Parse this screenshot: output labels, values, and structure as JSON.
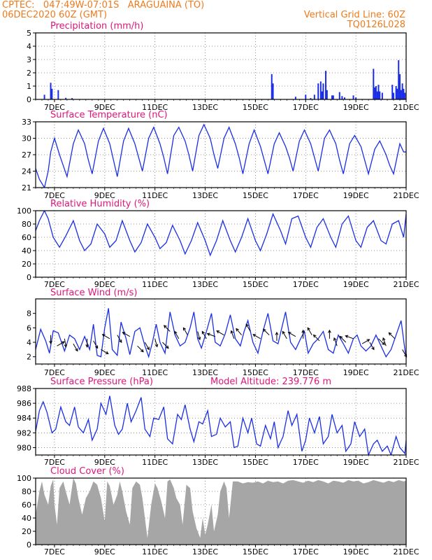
{
  "header": {
    "station_line": "CPTEC:   047:49W-07:01S   ARAGUAINA (TO)",
    "date_line": "06DEC2020 60Z (GMT)",
    "grid_note": "Vertical Grid Line: 60Z",
    "model_code": "TQ0126L028"
  },
  "colors": {
    "header": "#f07a1a",
    "panel_title": "#e0157a",
    "series": "#1a2ee6",
    "cloud": "#a6a6a6",
    "wind_arrow": "#000000"
  },
  "x_axis": {
    "labels": [
      "7DEC",
      "9DEC",
      "11DEC",
      "13DEC",
      "15DEC",
      "17DEC",
      "19DEC",
      "21DEC"
    ],
    "label_days": [
      7,
      9,
      11,
      13,
      15,
      17,
      19,
      21
    ],
    "start_day": 6.25,
    "end_day": 21.0
  },
  "chart_data": [
    {
      "id": "precip",
      "type": "bar",
      "title": "Precipitation  (mm/h)",
      "ylim": [
        0,
        5
      ],
      "yticks": [
        0,
        1,
        2,
        3,
        4,
        5
      ],
      "grid": true,
      "series": [
        {
          "x": [
            6.6,
            6.85,
            6.9,
            7.15,
            7.45,
            7.7,
            15.65,
            15.7,
            16.6,
            17.0,
            17.2,
            17.35,
            17.5,
            17.6,
            17.65,
            17.7,
            17.8,
            17.85,
            18.05,
            18.1,
            18.35,
            18.45,
            18.55,
            18.9,
            19.0,
            19.7,
            19.75,
            19.8,
            19.85,
            19.9,
            19.95,
            20.05,
            20.45,
            20.5,
            20.6,
            20.65,
            20.7,
            20.75,
            20.8,
            20.85,
            20.9,
            20.95
          ],
          "values": [
            0.35,
            1.25,
            0.8,
            0.7,
            0.12,
            0.1,
            1.9,
            1.2,
            0.2,
            0.35,
            0.1,
            0.35,
            1.2,
            1.35,
            0.6,
            1.2,
            2.15,
            0.7,
            0.3,
            0.3,
            0.55,
            0.25,
            0.15,
            0.3,
            0.15,
            2.3,
            0.9,
            1.0,
            0.6,
            1.1,
            0.6,
            0.5,
            1.1,
            0.5,
            1.0,
            0.8,
            2.95,
            1.9,
            0.7,
            1.2,
            0.8,
            0.5
          ]
        }
      ]
    },
    {
      "id": "temp",
      "type": "line",
      "title": "Surface Temperature  (nC)",
      "ylim": [
        21,
        33
      ],
      "yticks": [
        21,
        24,
        27,
        30,
        33
      ],
      "grid": true,
      "x": [
        6.25,
        6.4,
        6.6,
        6.75,
        6.85,
        7.0,
        7.2,
        7.35,
        7.5,
        7.75,
        7.95,
        8.2,
        8.35,
        8.5,
        8.75,
        8.95,
        9.2,
        9.35,
        9.5,
        9.75,
        9.95,
        10.2,
        10.35,
        10.5,
        10.75,
        10.95,
        11.2,
        11.35,
        11.5,
        11.75,
        11.95,
        12.2,
        12.35,
        12.5,
        12.75,
        12.95,
        13.2,
        13.35,
        13.5,
        13.75,
        13.95,
        14.2,
        14.35,
        14.5,
        14.75,
        14.95,
        15.2,
        15.35,
        15.5,
        15.75,
        15.95,
        16.2,
        16.35,
        16.5,
        16.75,
        16.95,
        17.2,
        17.35,
        17.5,
        17.75,
        17.95,
        18.2,
        18.35,
        18.5,
        18.75,
        18.95,
        19.2,
        19.35,
        19.5,
        19.75,
        19.95,
        20.2,
        20.35,
        20.5,
        20.75,
        20.9,
        21.0
      ],
      "values": [
        24.5,
        22.5,
        21.0,
        24.0,
        27.5,
        30.0,
        27.0,
        25.0,
        23.0,
        29.0,
        31.5,
        29.0,
        26.0,
        23.5,
        29.5,
        31.8,
        29.0,
        26.0,
        23.0,
        29.5,
        31.8,
        29.0,
        26.5,
        24.0,
        30.0,
        32.0,
        29.0,
        26.5,
        23.5,
        30.5,
        32.0,
        29.5,
        27.0,
        24.0,
        30.5,
        32.5,
        30.0,
        27.0,
        24.5,
        30.0,
        32.0,
        29.0,
        26.5,
        23.5,
        29.0,
        31.5,
        28.5,
        26.0,
        23.5,
        29.0,
        31.0,
        28.5,
        26.5,
        24.0,
        29.5,
        31.5,
        29.0,
        26.5,
        24.0,
        30.0,
        31.5,
        29.0,
        26.0,
        23.5,
        29.0,
        30.5,
        28.5,
        26.0,
        23.5,
        28.0,
        29.5,
        27.0,
        25.0,
        23.5,
        29.0,
        27.5,
        27.5
      ]
    },
    {
      "id": "rh",
      "type": "line",
      "title": "Relative Humidity  (%)",
      "ylim": [
        0,
        100
      ],
      "yticks": [
        0,
        20,
        40,
        60,
        80,
        100
      ],
      "grid": true,
      "x": [
        6.25,
        6.4,
        6.6,
        6.75,
        6.95,
        7.2,
        7.45,
        7.75,
        8.0,
        8.2,
        8.45,
        8.7,
        9.0,
        9.2,
        9.45,
        9.7,
        10.0,
        10.2,
        10.45,
        10.7,
        11.0,
        11.2,
        11.45,
        11.7,
        12.0,
        12.2,
        12.45,
        12.7,
        13.0,
        13.2,
        13.45,
        13.7,
        14.0,
        14.2,
        14.45,
        14.7,
        15.0,
        15.2,
        15.45,
        15.7,
        16.0,
        16.2,
        16.45,
        16.7,
        17.0,
        17.2,
        17.45,
        17.7,
        18.0,
        18.2,
        18.45,
        18.7,
        19.0,
        19.2,
        19.45,
        19.7,
        20.0,
        20.2,
        20.45,
        20.7,
        20.9,
        21.0
      ],
      "values": [
        70,
        85,
        100,
        88,
        60,
        45,
        62,
        85,
        55,
        40,
        50,
        80,
        65,
        45,
        55,
        85,
        55,
        38,
        52,
        80,
        60,
        43,
        52,
        78,
        55,
        35,
        55,
        82,
        55,
        33,
        55,
        85,
        55,
        38,
        60,
        88,
        55,
        40,
        65,
        95,
        70,
        50,
        88,
        92,
        60,
        45,
        75,
        88,
        60,
        45,
        80,
        92,
        55,
        45,
        75,
        85,
        55,
        50,
        80,
        85,
        60,
        95
      ]
    },
    {
      "id": "wind",
      "type": "line",
      "title": "Surface Wind  (m/s)",
      "ylim": [
        1,
        10
      ],
      "yticks": [
        2,
        4,
        6,
        8
      ],
      "grid": false,
      "x": [
        6.25,
        6.45,
        6.65,
        6.8,
        6.95,
        7.15,
        7.4,
        7.6,
        7.8,
        8.0,
        8.2,
        8.4,
        8.55,
        8.7,
        8.85,
        9.0,
        9.15,
        9.3,
        9.5,
        9.65,
        9.85,
        10.0,
        10.2,
        10.4,
        10.6,
        10.75,
        10.9,
        11.05,
        11.2,
        11.4,
        11.6,
        11.8,
        12.0,
        12.2,
        12.4,
        12.55,
        12.7,
        12.85,
        13.05,
        13.25,
        13.4,
        13.6,
        13.8,
        14.0,
        14.2,
        14.4,
        14.55,
        14.7,
        14.9,
        15.1,
        15.3,
        15.5,
        15.7,
        15.9,
        16.05,
        16.2,
        16.4,
        16.6,
        16.8,
        16.95,
        17.1,
        17.3,
        17.5,
        17.7,
        17.9,
        18.1,
        18.3,
        18.5,
        18.7,
        18.9,
        19.05,
        19.2,
        19.4,
        19.6,
        19.8,
        20.0,
        20.2,
        20.4,
        20.6,
        20.8,
        20.95,
        21.0
      ],
      "values": [
        3.0,
        5.8,
        4.2,
        2.5,
        5.6,
        5.3,
        2.8,
        5.0,
        4.5,
        3.0,
        4.8,
        3.0,
        6.5,
        2.2,
        2.0,
        6.0,
        8.7,
        3.0,
        2.2,
        6.8,
        4.5,
        2.3,
        5.5,
        6.0,
        3.5,
        2.0,
        4.0,
        6.5,
        4.0,
        2.5,
        8.2,
        5.0,
        3.5,
        4.0,
        6.0,
        8.2,
        4.5,
        3.2,
        5.5,
        8.0,
        4.0,
        3.5,
        5.2,
        7.8,
        4.5,
        3.5,
        5.5,
        7.0,
        4.0,
        2.5,
        5.5,
        8.0,
        4.2,
        3.8,
        6.0,
        8.2,
        4.0,
        3.0,
        4.5,
        5.5,
        2.5,
        3.8,
        4.5,
        5.5,
        3.0,
        2.5,
        5.0,
        3.8,
        2.5,
        4.5,
        5.0,
        3.5,
        2.8,
        3.5,
        5.0,
        3.5,
        2.0,
        3.0,
        5.0,
        7.0,
        3.0,
        2.0
      ],
      "arrows": {
        "x": [
          6.85,
          7.1,
          7.4,
          7.75,
          8.3,
          8.55,
          8.85,
          9.2,
          9.5,
          10.0,
          10.3,
          10.6,
          11.0,
          11.3,
          11.6,
          11.95,
          12.3,
          12.7,
          13.05,
          13.4,
          13.75,
          14.15,
          14.45,
          14.8,
          15.2,
          15.55,
          15.85,
          16.25,
          16.6,
          16.9,
          17.25,
          17.55,
          17.95,
          18.25,
          18.6,
          18.9,
          19.25,
          19.55,
          19.9,
          20.2,
          20.55,
          20.85
        ],
        "speed": [
          5.0,
          3.5,
          4.5,
          3.8,
          4.5,
          4.2,
          3.0,
          4.5,
          5.0,
          4.8,
          3.5,
          4.0,
          4.5,
          4.0,
          5.5,
          4.5,
          5.0,
          5.5,
          4.5,
          4.8,
          5.0,
          4.5,
          5.0,
          5.5,
          4.5,
          5.0,
          4.2,
          4.5,
          4.8,
          4.5,
          5.0,
          4.2,
          4.5,
          3.5,
          4.0,
          4.5,
          3.8,
          4.0,
          4.5,
          3.5,
          4.5,
          3.0
        ],
        "direction_deg": [
          90,
          330,
          80,
          60,
          90,
          60,
          30,
          210,
          60,
          210,
          45,
          60,
          75,
          45,
          225,
          240,
          240,
          75,
          240,
          200,
          210,
          250,
          230,
          240,
          210,
          225,
          270,
          240,
          210,
          270,
          240,
          225,
          270,
          250,
          225,
          200,
          330,
          60,
          45,
          250,
          225,
          60
        ]
      }
    },
    {
      "id": "pressure",
      "type": "line",
      "title": "Surface Pressure  (hPa)",
      "annotation": "Model Altitude: 239.776  m",
      "ylim": [
        979.0,
        988.0
      ],
      "yticks": [
        980,
        982,
        984,
        986,
        988
      ],
      "grid": true,
      "x": [
        6.25,
        6.4,
        6.55,
        6.7,
        6.9,
        7.05,
        7.25,
        7.45,
        7.6,
        7.8,
        7.95,
        8.15,
        8.35,
        8.5,
        8.7,
        8.85,
        9.05,
        9.2,
        9.4,
        9.55,
        9.7,
        9.9,
        10.05,
        10.25,
        10.45,
        10.6,
        10.8,
        10.95,
        11.15,
        11.35,
        11.5,
        11.7,
        11.9,
        12.05,
        12.2,
        12.4,
        12.55,
        12.75,
        12.9,
        13.1,
        13.25,
        13.45,
        13.6,
        13.8,
        14.0,
        14.15,
        14.3,
        14.5,
        14.7,
        14.85,
        15.05,
        15.2,
        15.4,
        15.6,
        15.75,
        15.9,
        16.1,
        16.3,
        16.45,
        16.65,
        16.85,
        17.0,
        17.15,
        17.35,
        17.55,
        17.7,
        17.9,
        18.05,
        18.25,
        18.45,
        18.6,
        18.8,
        18.95,
        19.15,
        19.35,
        19.5,
        19.7,
        19.85,
        20.05,
        20.25,
        20.4,
        20.6,
        20.75,
        20.95,
        21.0
      ],
      "values": [
        982.2,
        985.0,
        986.2,
        984.8,
        982.0,
        982.5,
        985.5,
        983.5,
        983.0,
        985.5,
        982.8,
        982.0,
        983.8,
        981.0,
        982.5,
        986.0,
        984.5,
        987.0,
        983.0,
        981.8,
        982.5,
        986.0,
        983.5,
        985.0,
        986.8,
        982.5,
        981.5,
        984.0,
        983.8,
        985.5,
        981.2,
        980.5,
        984.5,
        983.8,
        985.8,
        982.5,
        980.8,
        983.5,
        983.2,
        985.0,
        981.5,
        981.8,
        984.0,
        982.8,
        983.5,
        980.0,
        980.2,
        984.0,
        982.0,
        984.0,
        980.5,
        980.2,
        983.0,
        981.2,
        983.5,
        980.0,
        981.5,
        985.0,
        983.0,
        984.5,
        979.5,
        981.0,
        984.0,
        982.0,
        984.2,
        980.5,
        981.5,
        984.5,
        982.0,
        983.0,
        979.5,
        980.5,
        983.5,
        981.5,
        982.5,
        979.0,
        980.5,
        981.0,
        979.5,
        980.2,
        979.0,
        981.5,
        980.0,
        979.2,
        981.0
      ]
    },
    {
      "id": "cloud",
      "type": "area",
      "title": "Cloud Cover  (%)",
      "ylim": [
        0,
        100
      ],
      "yticks": [
        0,
        20,
        40,
        60,
        80,
        100
      ],
      "grid": true,
      "x": [
        6.25,
        6.4,
        6.5,
        6.6,
        6.75,
        6.85,
        6.95,
        7.0,
        7.1,
        7.2,
        7.35,
        7.45,
        7.6,
        7.75,
        7.85,
        7.95,
        8.1,
        8.25,
        8.4,
        8.55,
        8.7,
        8.85,
        9.0,
        9.1,
        9.2,
        9.35,
        9.5,
        9.6,
        9.7,
        9.85,
        10.0,
        10.1,
        10.25,
        10.4,
        10.5,
        10.6,
        10.7,
        10.85,
        11.0,
        11.1,
        11.25,
        11.4,
        11.5,
        11.6,
        11.75,
        11.85,
        12.0,
        12.1,
        12.25,
        12.4,
        12.5,
        12.65,
        12.8,
        12.9,
        13.0,
        13.1,
        13.25,
        13.35,
        13.5,
        13.6,
        13.75,
        13.85,
        13.95,
        14.1,
        14.3,
        14.5,
        14.7,
        14.9,
        15.1,
        15.3,
        15.5,
        15.7,
        15.9,
        16.1,
        16.3,
        16.5,
        16.7,
        16.9,
        17.1,
        17.3,
        17.5,
        17.7,
        17.9,
        18.1,
        18.3,
        18.5,
        18.7,
        18.9,
        19.1,
        19.3,
        19.5,
        19.7,
        19.9,
        20.1,
        20.3,
        20.5,
        20.7,
        20.9,
        21.0
      ],
      "values": [
        45,
        80,
        95,
        75,
        60,
        88,
        98,
        60,
        30,
        85,
        95,
        80,
        60,
        100,
        92,
        70,
        45,
        70,
        80,
        95,
        90,
        70,
        35,
        95,
        88,
        60,
        75,
        95,
        80,
        50,
        30,
        85,
        95,
        90,
        70,
        40,
        10,
        60,
        92,
        85,
        65,
        40,
        95,
        98,
        85,
        70,
        60,
        30,
        90,
        85,
        50,
        25,
        10,
        40,
        15,
        30,
        60,
        20,
        45,
        80,
        95,
        85,
        40,
        95,
        95,
        92,
        94,
        93,
        95,
        92,
        96,
        94,
        95,
        92,
        96,
        97,
        95,
        93,
        96,
        94,
        97,
        95,
        92,
        96,
        95,
        93,
        97,
        95,
        96,
        92,
        94,
        97,
        95,
        93,
        96,
        94,
        97,
        95,
        96
      ]
    }
  ]
}
